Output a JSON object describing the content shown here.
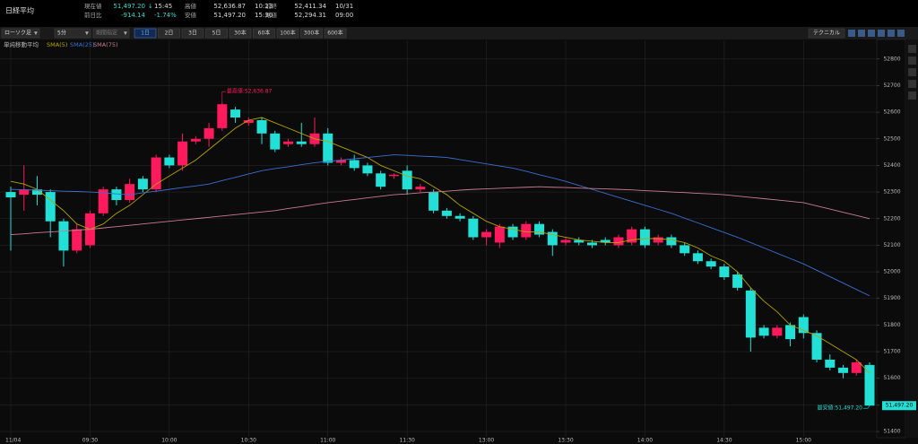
{
  "quote": {
    "name": "日経平均",
    "fields": [
      {
        "label": "現在値",
        "value": "51,497.20",
        "arrow": "↓",
        "extra": "15:45"
      },
      {
        "label": "前日比",
        "value": "-914.14",
        "extra": "-1.74%"
      },
      {
        "label": "高値",
        "value": "52,636.87",
        "extra": "10:23"
      },
      {
        "label": "安値",
        "value": "51,497.20",
        "extra": "15:30"
      },
      {
        "label": "前終",
        "value": "52,411.34",
        "extra": "10/31"
      },
      {
        "label": "始値",
        "value": "52,294.31",
        "extra": "09:00"
      }
    ]
  },
  "toolbar": {
    "chart_kind": "ローソク足",
    "interval": "5分",
    "period": "期間指定",
    "ranges": [
      "1日",
      "2日",
      "3日",
      "5日",
      "30本",
      "60本",
      "100本",
      "300本",
      "600本"
    ],
    "technical": "テクニカル"
  },
  "chart_data": {
    "type": "candlestick",
    "indicator": "単純移動平均",
    "up_color": "#ff1a5e",
    "down_color": "#22e0d6",
    "grid": true,
    "ylim": [
      51380,
      52870
    ],
    "yticks": [
      51400,
      51500,
      51600,
      51700,
      51800,
      51900,
      52000,
      52100,
      52200,
      52300,
      52400,
      52500,
      52600,
      52700,
      52800
    ],
    "categories": [
      "11/04",
      null,
      null,
      null,
      null,
      null,
      "09:30",
      null,
      null,
      null,
      null,
      null,
      "10:00",
      null,
      null,
      null,
      null,
      null,
      "10:30",
      null,
      null,
      null,
      null,
      null,
      "11:00",
      null,
      null,
      null,
      null,
      null,
      "11:30",
      null,
      null,
      null,
      null,
      null,
      "13:00",
      null,
      null,
      null,
      null,
      null,
      "13:30",
      null,
      null,
      null,
      null,
      null,
      "14:00",
      null,
      null,
      null,
      null,
      null,
      "14:30",
      null,
      null,
      null,
      null,
      null,
      "15:00",
      null,
      null,
      null,
      null,
      null
    ],
    "open": [
      52300,
      52290,
      52310,
      52300,
      52190,
      52080,
      52100,
      52220,
      52310,
      52270,
      52350,
      52310,
      52430,
      52400,
      52490,
      52500,
      52540,
      52610,
      52560,
      52570,
      52520,
      52480,
      52490,
      52480,
      52520,
      52410,
      52420,
      52400,
      52370,
      52360,
      52380,
      52310,
      52300,
      52230,
      52210,
      52200,
      52130,
      52110,
      52170,
      52130,
      52180,
      52150,
      52110,
      52120,
      52110,
      52120,
      52100,
      52110,
      52160,
      52110,
      52130,
      52100,
      52070,
      52040,
      52020,
      51990,
      51930,
      51790,
      51760,
      51800,
      51830,
      51770,
      51670,
      51640,
      51620,
      51650
    ],
    "high": [
      52320,
      52400,
      52360,
      52310,
      52200,
      52180,
      52230,
      52320,
      52320,
      52350,
      52360,
      52440,
      52440,
      52520,
      52510,
      52560,
      52636.87,
      52620,
      52580,
      52580,
      52530,
      52500,
      52560,
      52580,
      52540,
      52430,
      52440,
      52410,
      52380,
      52370,
      52400,
      52330,
      52310,
      52240,
      52220,
      52210,
      52160,
      52180,
      52180,
      52190,
      52190,
      52160,
      52130,
      52130,
      52120,
      52130,
      52140,
      52170,
      52170,
      52140,
      52140,
      52110,
      52080,
      52050,
      52030,
      52000,
      51940,
      51800,
      51800,
      51810,
      51840,
      51780,
      51690,
      51650,
      51670,
      51660
    ],
    "low": [
      52080,
      52230,
      52250,
      52130,
      52020,
      52070,
      52090,
      52210,
      52250,
      52260,
      52300,
      52300,
      52390,
      52380,
      52480,
      52470,
      52530,
      52560,
      52550,
      52480,
      52450,
      52470,
      52470,
      52470,
      52400,
      52400,
      52380,
      52360,
      52310,
      52350,
      52290,
      52300,
      52220,
      52200,
      52190,
      52120,
      52100,
      52090,
      52120,
      52120,
      52130,
      52060,
      52100,
      52100,
      52090,
      52100,
      52090,
      52100,
      52090,
      52100,
      52090,
      52060,
      52030,
      52010,
      51970,
      51930,
      51700,
      51750,
      51750,
      51720,
      51750,
      51660,
      51630,
      51600,
      51610,
      51497.2
    ],
    "close": [
      52280,
      52310,
      52290,
      52190,
      52080,
      52160,
      52220,
      52310,
      52270,
      52330,
      52310,
      52430,
      52400,
      52490,
      52500,
      52540,
      52630,
      52580,
      52570,
      52520,
      52460,
      52490,
      52480,
      52520,
      52410,
      52420,
      52390,
      52370,
      52320,
      52365,
      52310,
      52320,
      52230,
      52210,
      52200,
      52130,
      52150,
      52170,
      52130,
      52180,
      52140,
      52100,
      52120,
      52110,
      52100,
      52110,
      52130,
      52160,
      52100,
      52130,
      52100,
      52070,
      52040,
      52020,
      51980,
      51940,
      51753,
      51760,
      51790,
      51747,
      51770,
      51670,
      51640,
      51620,
      51660,
      51497.2
    ],
    "series": [
      {
        "name": "SMA(5)",
        "color": "#b3a400",
        "values": [
          52340,
          52330,
          52310,
          52270,
          52230,
          52180,
          52160,
          52180,
          52220,
          52250,
          52290,
          52330,
          52360,
          52390,
          52420,
          52460,
          52500,
          52540,
          52570,
          52580,
          52560,
          52540,
          52520,
          52500,
          52490,
          52470,
          52450,
          52430,
          52400,
          52380,
          52360,
          52350,
          52320,
          52290,
          52250,
          52220,
          52190,
          52170,
          52160,
          52150,
          52150,
          52140,
          52130,
          52120,
          52115,
          52110,
          52110,
          52120,
          52125,
          52125,
          52120,
          52110,
          52090,
          52060,
          52040,
          52000,
          51940,
          51890,
          51850,
          51800,
          51780,
          51760,
          51730,
          51700,
          51670,
          51620
        ]
      },
      {
        "name": "SMA(25)",
        "color": "#3b6fd0",
        "values": [
          52310,
          52308,
          52307,
          52305,
          52303,
          52302,
          52300,
          52297,
          52293,
          52290,
          52297,
          52303,
          52310,
          52317,
          52323,
          52330,
          52343,
          52355,
          52368,
          52380,
          52388,
          52395,
          52403,
          52410,
          52415,
          52420,
          52425,
          52430,
          52435,
          52440,
          52438,
          52435,
          52433,
          52430,
          52422,
          52414,
          52406,
          52398,
          52390,
          52378,
          52365,
          52353,
          52340,
          52325,
          52310,
          52295,
          52280,
          52265,
          52250,
          52235,
          52220,
          52202,
          52184,
          52166,
          52148,
          52130,
          52110,
          52090,
          52070,
          52050,
          52030,
          52006,
          51982,
          51958,
          51934,
          51910
        ]
      },
      {
        "name": "SMA(75)",
        "color": "#c87c90",
        "values": [
          52140,
          52143,
          52147,
          52150,
          52153,
          52157,
          52160,
          52165,
          52170,
          52175,
          52180,
          52185,
          52190,
          52195,
          52200,
          52205,
          52210,
          52215,
          52220,
          52225,
          52230,
          52238,
          52245,
          52253,
          52260,
          52266,
          52272,
          52278,
          52284,
          52290,
          52293,
          52297,
          52300,
          52303,
          52307,
          52310,
          52312,
          52314,
          52316,
          52318,
          52320,
          52318,
          52317,
          52315,
          52313,
          52312,
          52310,
          52308,
          52305,
          52303,
          52300,
          52298,
          52295,
          52293,
          52290,
          52285,
          52280,
          52275,
          52270,
          52265,
          52260,
          52248,
          52236,
          52224,
          52212,
          52200
        ]
      }
    ],
    "high_annotation": "最高値:52,636.87",
    "low_annotation": "最安値:51,497.20",
    "last_label": "51,497.20"
  }
}
